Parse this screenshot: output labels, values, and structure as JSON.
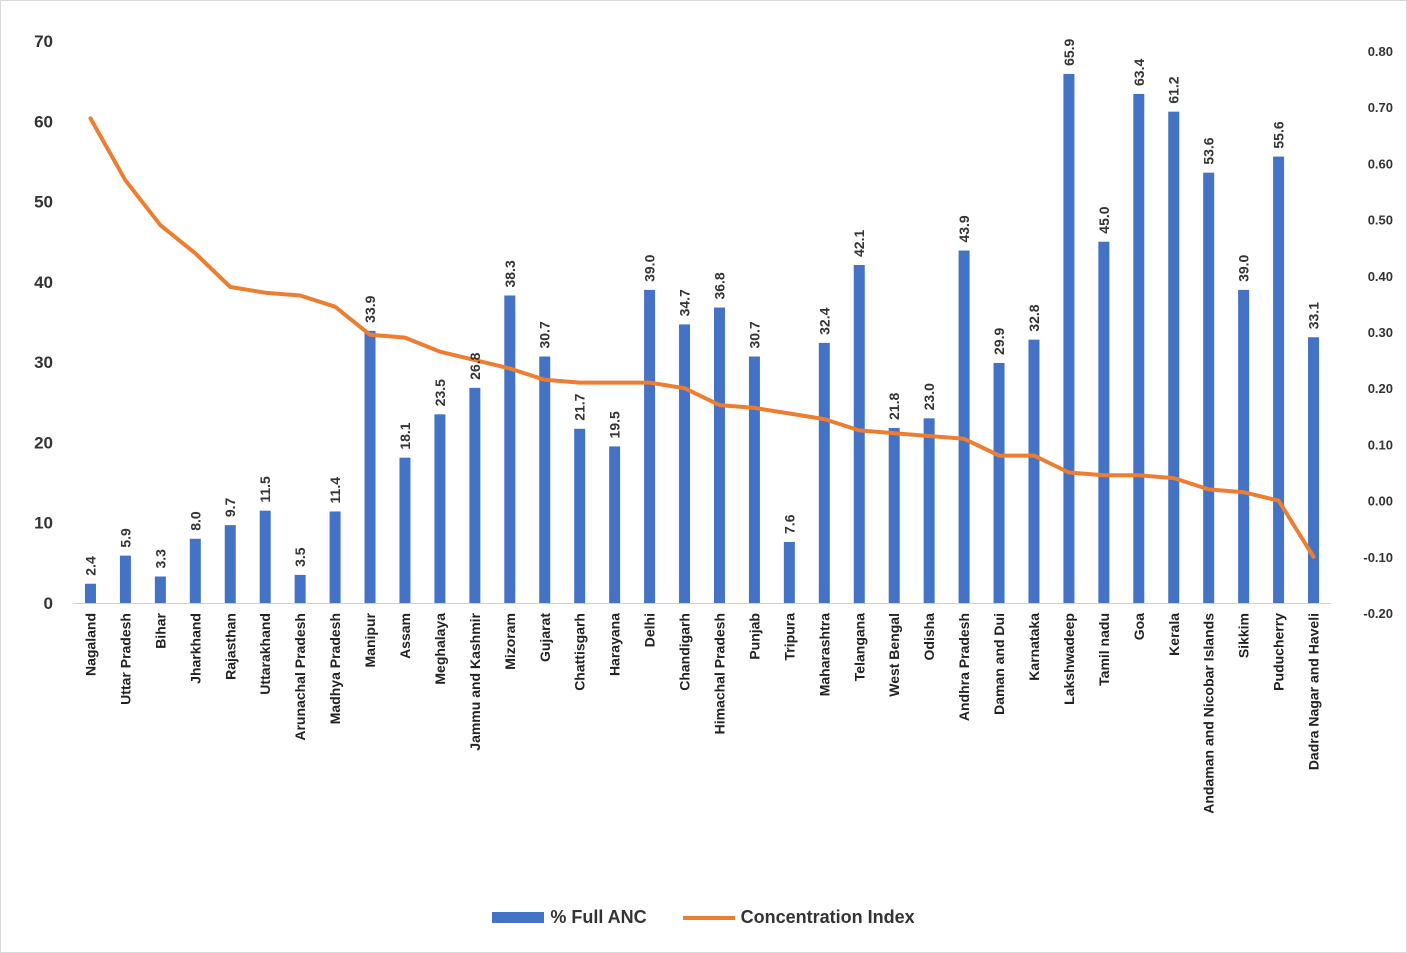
{
  "chart_data": {
    "type": "bar",
    "categories": [
      "Nagaland",
      "Uttar Pradesh",
      "Bihar",
      "Jharkhand",
      "Rajasthan",
      "Uttarakhand",
      "Arunachal Pradesh",
      "Madhya Pradesh",
      "Manipur",
      "Assam",
      "Meghalaya",
      "Jammu and Kashmir",
      "Mizoram",
      "Gujarat",
      "Chattisgarh",
      "Harayana",
      "Delhi",
      "Chandigarh",
      "Himachal Pradesh",
      "Punjab",
      "Tripura",
      "Maharashtra",
      "Telangana",
      "West Bengal",
      "Odisha",
      "Andhra Pradesh",
      "Daman and Dui",
      "Karnataka",
      "Lakshwadeep",
      "Tamil nadu",
      "Goa",
      "Kerala",
      "Andaman and Nicobar Islands",
      "Sikkim",
      "Puducherry",
      "Dadra Nagar and Haveli"
    ],
    "series": [
      {
        "name": "% Full ANC",
        "type": "bar",
        "axis": "left",
        "color": "#4472c4",
        "values": [
          2.4,
          5.9,
          3.3,
          8.0,
          9.7,
          11.5,
          3.5,
          11.4,
          33.9,
          18.1,
          23.5,
          26.8,
          38.3,
          30.7,
          21.7,
          19.5,
          39.0,
          34.7,
          36.8,
          30.7,
          7.6,
          32.4,
          42.1,
          21.8,
          23.0,
          43.9,
          29.9,
          32.8,
          65.9,
          45.0,
          63.4,
          61.2,
          53.6,
          39.0,
          55.6,
          33.1
        ],
        "data_labels": [
          "2.4",
          "5.9",
          "3.3",
          "8.0",
          "9.7",
          "11.5",
          "3.5",
          "11.4",
          "33.9",
          "18.1",
          "23.5",
          "26.8",
          "38.3",
          "30.7",
          "21.7",
          "19.5",
          "39.0",
          "34.7",
          "36.8",
          "30.7",
          "7.6",
          "32.4",
          "42.1",
          "21.8",
          "23.0",
          "43.9",
          "29.9",
          "32.8",
          "65.9",
          "45.0",
          "63.4",
          "61.2",
          "53.6",
          "39.0",
          "55.6",
          "33.1"
        ]
      },
      {
        "name": "Concentration Index",
        "type": "line",
        "axis": "right",
        "color": "#ed7d31",
        "values": [
          0.68,
          0.57,
          0.49,
          0.44,
          0.38,
          0.37,
          0.365,
          0.345,
          0.295,
          0.29,
          0.265,
          0.25,
          0.235,
          0.215,
          0.21,
          0.21,
          0.21,
          0.2,
          0.17,
          0.165,
          0.155,
          0.145,
          0.125,
          0.12,
          0.115,
          0.11,
          0.08,
          0.08,
          0.05,
          0.045,
          0.045,
          0.04,
          0.02,
          0.015,
          0.0,
          -0.1
        ]
      }
    ],
    "y_left": {
      "ylim": [
        0,
        70
      ],
      "ticks": [
        "0",
        "10",
        "20",
        "30",
        "40",
        "50",
        "60",
        "70"
      ]
    },
    "y_right": {
      "ylim": [
        -0.2,
        0.8
      ],
      "ticks": [
        "-0.20",
        "-0.10",
        "0.00",
        "0.10",
        "0.20",
        "0.30",
        "0.40",
        "0.50",
        "0.60",
        "0.70",
        "0.80"
      ]
    },
    "title": "",
    "xlabel": "",
    "ylabel": "",
    "grid": false,
    "legend_position": "bottom"
  },
  "legend": {
    "bar_label": "% Full ANC",
    "line_label": "Concentration Index"
  }
}
